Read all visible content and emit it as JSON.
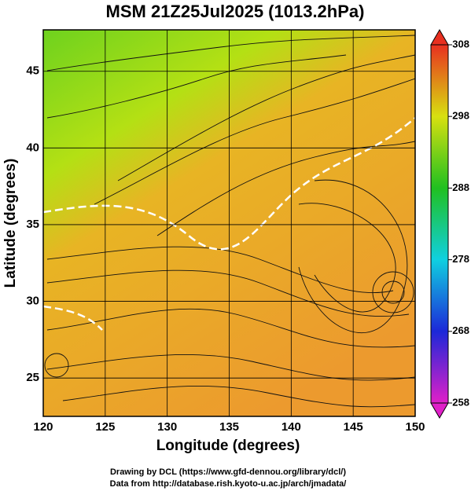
{
  "title": "MSM 21Z25Jul2025 (1013.2hPa)",
  "x_axis": {
    "label": "Longitude (degrees)",
    "lim": [
      120,
      150
    ],
    "ticks": [
      120,
      125,
      130,
      135,
      140,
      145,
      150
    ]
  },
  "y_axis": {
    "label": "Latitude  (degrees)",
    "lim": [
      22.5,
      47.7
    ],
    "ticks": [
      25,
      30,
      35,
      40,
      45
    ]
  },
  "colorbar": {
    "lim": [
      258,
      308
    ],
    "ticks": [
      258,
      268,
      278,
      288,
      298,
      308
    ]
  },
  "footer": [
    "Drawing by DCL (https://www.gfd-dennou.org/library/dcl/)",
    "Data from http://database.rish.kyoto-u.ac.jp/arch/jmadata/"
  ]
}
